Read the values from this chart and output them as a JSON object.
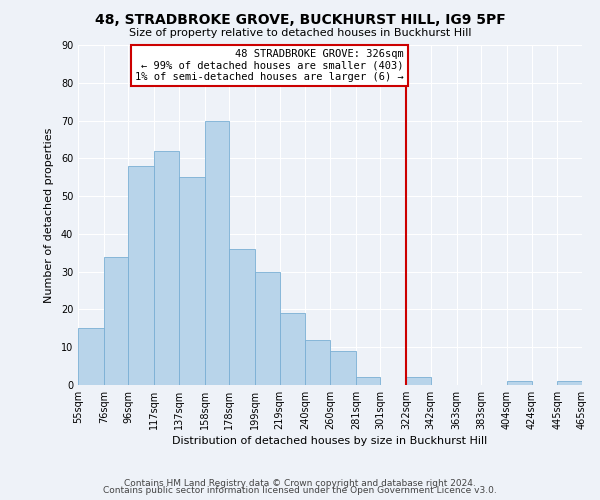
{
  "title": "48, STRADBROKE GROVE, BUCKHURST HILL, IG9 5PF",
  "subtitle": "Size of property relative to detached houses in Buckhurst Hill",
  "xlabel": "Distribution of detached houses by size in Buckhurst Hill",
  "ylabel": "Number of detached properties",
  "footer_line1": "Contains HM Land Registry data © Crown copyright and database right 2024.",
  "footer_line2": "Contains public sector information licensed under the Open Government Licence v3.0.",
  "bin_edges": [
    55,
    76,
    96,
    117,
    137,
    158,
    178,
    199,
    219,
    240,
    260,
    281,
    301,
    322,
    342,
    363,
    383,
    404,
    424,
    445,
    465
  ],
  "bin_labels": [
    "55sqm",
    "76sqm",
    "96sqm",
    "117sqm",
    "137sqm",
    "158sqm",
    "178sqm",
    "199sqm",
    "219sqm",
    "240sqm",
    "260sqm",
    "281sqm",
    "301sqm",
    "322sqm",
    "342sqm",
    "363sqm",
    "383sqm",
    "404sqm",
    "424sqm",
    "445sqm",
    "465sqm"
  ],
  "counts": [
    15,
    34,
    58,
    62,
    55,
    70,
    36,
    30,
    19,
    12,
    9,
    2,
    0,
    2,
    0,
    0,
    0,
    1,
    0,
    1
  ],
  "bar_color": "#b8d4ea",
  "bar_edge_color": "#7aafd4",
  "vline_color": "#cc0000",
  "vline_x": 322,
  "annotation_text_line1": "48 STRADBROKE GROVE: 326sqm",
  "annotation_text_line2": "← 99% of detached houses are smaller (403)",
  "annotation_text_line3": "1% of semi-detached houses are larger (6) →",
  "annotation_box_color": "#ffffff",
  "annotation_box_edge": "#cc0000",
  "ylim": [
    0,
    90
  ],
  "yticks": [
    0,
    10,
    20,
    30,
    40,
    50,
    60,
    70,
    80,
    90
  ],
  "background_color": "#eef2f8",
  "grid_color": "#ffffff",
  "title_fontsize": 10,
  "subtitle_fontsize": 8,
  "xlabel_fontsize": 8,
  "ylabel_fontsize": 8,
  "tick_fontsize": 7,
  "footer_fontsize": 6.5
}
